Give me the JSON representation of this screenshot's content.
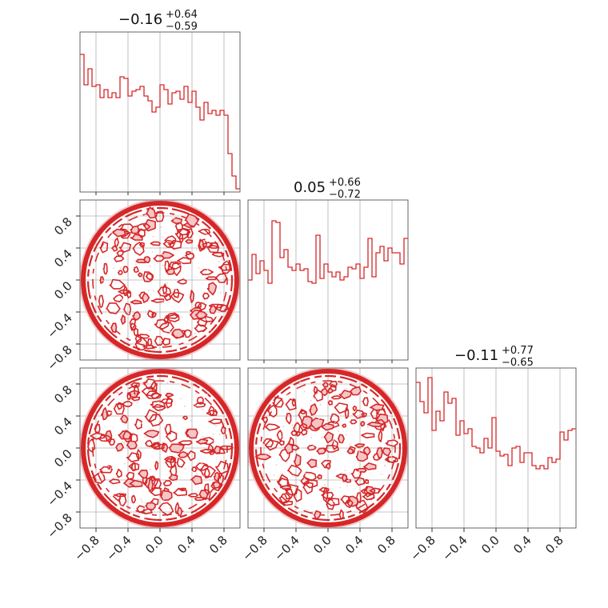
{
  "chart_data": {
    "type": "corner",
    "color": "#d62728",
    "fill_color": "#f4c6c8",
    "axis_range": [
      -1.0,
      1.0
    ],
    "tick_values": [
      -0.8,
      -0.4,
      0.0,
      0.4,
      0.8
    ],
    "tick_labels": [
      "−0.8",
      "−0.4",
      "0.0",
      "0.4",
      "0.8"
    ],
    "grid": true,
    "titles": [
      {
        "main": "−0.16",
        "plus": "+0.64",
        "minus": "−0.59"
      },
      {
        "main": "0.05",
        "plus": "+0.66",
        "minus": "−0.72"
      },
      {
        "main": "−0.11",
        "plus": "+0.77",
        "minus": "−0.65"
      }
    ],
    "histograms": [
      {
        "bin_edges": [
          -1.0,
          -0.95,
          -0.9,
          -0.85,
          -0.8,
          -0.75,
          -0.7,
          -0.65,
          -0.6,
          -0.55,
          -0.5,
          -0.45,
          -0.4,
          -0.35,
          -0.3,
          -0.25,
          -0.2,
          -0.15,
          -0.1,
          -0.05,
          0.0,
          0.05,
          0.1,
          0.15,
          0.2,
          0.25,
          0.3,
          0.35,
          0.4,
          0.45,
          0.5,
          0.55,
          0.6,
          0.65,
          0.7,
          0.75,
          0.8,
          0.85,
          0.9,
          0.95,
          1.0
        ],
        "counts": [
          0.86,
          0.67,
          0.77,
          0.66,
          0.67,
          0.59,
          0.64,
          0.59,
          0.62,
          0.59,
          0.72,
          0.71,
          0.6,
          0.63,
          0.64,
          0.66,
          0.6,
          0.57,
          0.5,
          0.53,
          0.67,
          0.64,
          0.55,
          0.62,
          0.63,
          0.58,
          0.66,
          0.56,
          0.63,
          0.53,
          0.45,
          0.56,
          0.49,
          0.51,
          0.48,
          0.51,
          0.48,
          0.24,
          0.1,
          0.02
        ]
      },
      {
        "bin_edges": [
          -1.0,
          -0.95,
          -0.9,
          -0.85,
          -0.8,
          -0.75,
          -0.7,
          -0.65,
          -0.6,
          -0.55,
          -0.5,
          -0.45,
          -0.4,
          -0.35,
          -0.3,
          -0.25,
          -0.2,
          -0.15,
          -0.1,
          -0.05,
          0.0,
          0.05,
          0.1,
          0.15,
          0.2,
          0.25,
          0.3,
          0.35,
          0.4,
          0.45,
          0.5,
          0.55,
          0.6,
          0.65,
          0.7,
          0.75,
          0.8,
          0.85,
          0.9,
          0.95,
          1.0
        ],
        "counts": [
          0.5,
          0.66,
          0.54,
          0.62,
          0.56,
          0.48,
          0.87,
          0.86,
          0.64,
          0.69,
          0.58,
          0.56,
          0.6,
          0.56,
          0.57,
          0.49,
          0.48,
          0.78,
          0.51,
          0.6,
          0.55,
          0.52,
          0.55,
          0.5,
          0.52,
          0.58,
          0.57,
          0.6,
          0.51,
          0.58,
          0.76,
          0.52,
          0.67,
          0.71,
          0.62,
          0.7,
          0.67,
          0.67,
          0.6,
          0.76
        ]
      },
      {
        "bin_edges": [
          -1.0,
          -0.95,
          -0.9,
          -0.85,
          -0.8,
          -0.75,
          -0.7,
          -0.65,
          -0.6,
          -0.55,
          -0.5,
          -0.45,
          -0.4,
          -0.35,
          -0.3,
          -0.25,
          -0.2,
          -0.15,
          -0.1,
          -0.05,
          0.0,
          0.05,
          0.1,
          0.15,
          0.2,
          0.25,
          0.3,
          0.35,
          0.4,
          0.45,
          0.5,
          0.55,
          0.6,
          0.65,
          0.7,
          0.75,
          0.8,
          0.85,
          0.9,
          0.95,
          1.0
        ],
        "counts": [
          0.91,
          0.79,
          0.72,
          0.94,
          0.61,
          0.73,
          0.67,
          0.85,
          0.78,
          0.81,
          0.58,
          0.67,
          0.59,
          0.62,
          0.51,
          0.5,
          0.47,
          0.56,
          0.5,
          0.69,
          0.48,
          0.45,
          0.46,
          0.39,
          0.5,
          0.51,
          0.41,
          0.47,
          0.47,
          0.39,
          0.37,
          0.39,
          0.37,
          0.44,
          0.41,
          0.43,
          0.6,
          0.55,
          0.61,
          0.62
        ]
      }
    ],
    "scatter_panels": [
      {
        "row": 1,
        "col": 0,
        "x_param": 0,
        "y_param": 1,
        "support": "unit-disk"
      },
      {
        "row": 2,
        "col": 0,
        "x_param": 0,
        "y_param": 2,
        "support": "unit-disk"
      },
      {
        "row": 2,
        "col": 1,
        "x_param": 1,
        "y_param": 2,
        "support": "unit-disk"
      }
    ]
  }
}
